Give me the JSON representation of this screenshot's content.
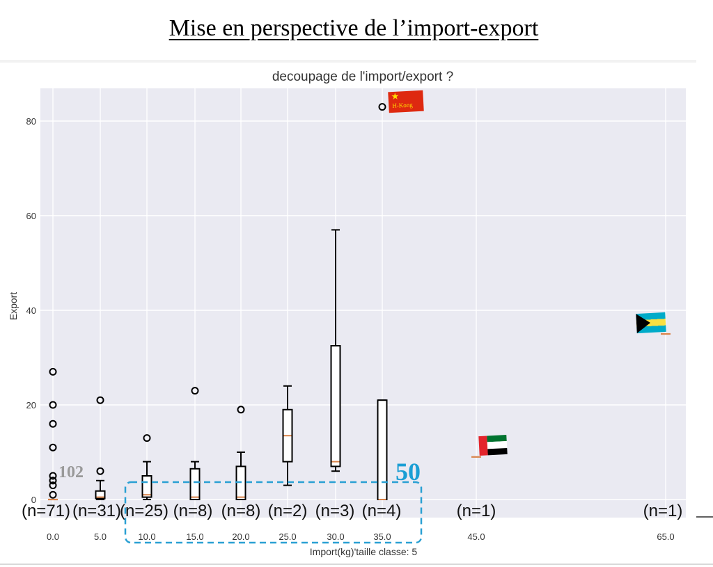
{
  "slide": {
    "title": "Mise en perspective de l’import-export"
  },
  "chart_data": {
    "type": "box",
    "title": "decoupage de l'import/export ?",
    "xlabel": "Import(kg)'taille classe: 5",
    "ylabel": "Export",
    "ylim": [
      0,
      87
    ],
    "yticks": [
      0,
      20,
      40,
      60,
      80
    ],
    "grid": true,
    "categories": [
      "0.0",
      "5.0",
      "10.0",
      "15.0",
      "20.0",
      "25.0",
      "30.0",
      "35.0",
      "45.0",
      "65.0"
    ],
    "count_labels": [
      "(n=71)",
      "(n=31)",
      "(n=25)",
      "(n=8)",
      "(n=8)",
      "(n=2)",
      "(n=3)",
      "(n=4)",
      "(n=1)",
      "(n=1)"
    ],
    "boxes": [
      {
        "x": 0,
        "q1": 0,
        "median": 0,
        "q3": 0,
        "whisker_low": 0,
        "whisker_high": 0,
        "outliers": [
          1,
          3,
          4,
          5,
          11,
          16,
          20,
          27
        ]
      },
      {
        "x": 5,
        "q1": 0.2,
        "median": 0.5,
        "q3": 1.8,
        "whisker_low": 0,
        "whisker_high": 4,
        "outliers": [
          6,
          21
        ]
      },
      {
        "x": 10,
        "q1": 0.5,
        "median": 1,
        "q3": 5,
        "whisker_low": 0,
        "whisker_high": 8,
        "outliers": [
          13
        ]
      },
      {
        "x": 15,
        "q1": 0,
        "median": 0.5,
        "q3": 6.5,
        "whisker_low": 0,
        "whisker_high": 8,
        "outliers": [
          23
        ]
      },
      {
        "x": 20,
        "q1": 0,
        "median": 0.5,
        "q3": 7,
        "whisker_low": 0,
        "whisker_high": 10,
        "outliers": [
          19
        ]
      },
      {
        "x": 25,
        "q1": 8,
        "median": 13.5,
        "q3": 19,
        "whisker_low": 3,
        "whisker_high": 24,
        "outliers": []
      },
      {
        "x": 30,
        "q1": 7,
        "median": 8,
        "q3": 32.5,
        "whisker_low": 6,
        "whisker_high": 57,
        "outliers": []
      },
      {
        "x": 35,
        "q1": 0,
        "median": 0,
        "q3": 21,
        "whisker_low": 0,
        "whisker_high": 21,
        "outliers": [
          83
        ]
      },
      {
        "x": 45,
        "q1": 9,
        "median": 9,
        "q3": 9,
        "whisker_low": 9,
        "whisker_high": 9,
        "outliers": []
      },
      {
        "x": 65,
        "q1": 35,
        "median": 35,
        "q3": 35,
        "whisker_low": 35,
        "whisker_high": 35,
        "outliers": []
      }
    ],
    "annotations": [
      {
        "text": "102",
        "color": "#999999"
      },
      {
        "text": "50",
        "color": "#1a9ed4"
      }
    ],
    "flag_labels": {
      "hong_kong": "H-Kong"
    },
    "colors": {
      "plot_bg": "#eaeaf2",
      "grid": "#ffffff",
      "median": "#d9834a",
      "highlight": "#2aa0d3",
      "annotation_gray": "#999999"
    }
  }
}
